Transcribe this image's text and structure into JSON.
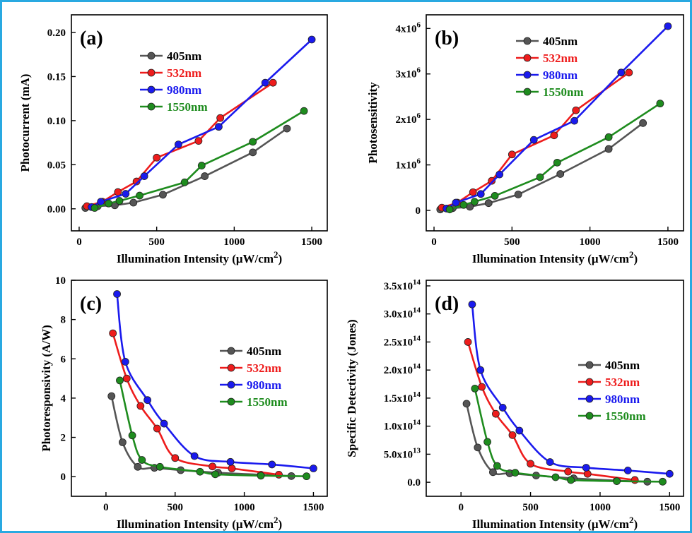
{
  "colors": {
    "frame": "#29a9e1",
    "405nm": "#555555",
    "532nm": "#ee1c1c",
    "980nm": "#1a1aee",
    "1550nm": "#1e8c1e"
  },
  "chart_data": [
    {
      "panel": "(a)",
      "type": "line",
      "xlabel": "Illumination Intensity (μW/cm²)",
      "ylabel": "Photocurrent (mA)",
      "xlim": [
        -50,
        1600
      ],
      "ylim": [
        -0.025,
        0.22
      ],
      "xticks": [
        0,
        500,
        1000,
        1500
      ],
      "xtick_labels": [
        "0",
        "500",
        "1000",
        "1500"
      ],
      "yticks": [
        0,
        0.05,
        0.1,
        0.15,
        0.2
      ],
      "ytick_labels": [
        "0.00",
        "0.05",
        "0.10",
        "0.15",
        "0.20"
      ],
      "legend": "top-left",
      "series": [
        {
          "name": "405nm",
          "color": "#555555",
          "x": [
            40,
            120,
            230,
            350,
            540,
            810,
            1120,
            1340
          ],
          "y": [
            0.001,
            0.003,
            0.004,
            0.007,
            0.016,
            0.037,
            0.064,
            0.091
          ]
        },
        {
          "name": "532nm",
          "color": "#ee1c1c",
          "x": [
            50,
            150,
            250,
            370,
            500,
            770,
            910,
            1250
          ],
          "y": [
            0.003,
            0.008,
            0.019,
            0.031,
            0.058,
            0.077,
            0.103,
            0.143
          ]
        },
        {
          "name": "980nm",
          "color": "#1a1aee",
          "x": [
            80,
            140,
            300,
            420,
            640,
            900,
            1200,
            1500
          ],
          "y": [
            0.002,
            0.008,
            0.017,
            0.037,
            0.073,
            0.093,
            0.143,
            0.192
          ]
        },
        {
          "name": "1550nm",
          "color": "#1e8c1e",
          "x": [
            100,
            190,
            260,
            390,
            680,
            790,
            1120,
            1450
          ],
          "y": [
            0.001,
            0.006,
            0.009,
            0.015,
            0.03,
            0.049,
            0.076,
            0.111
          ]
        }
      ]
    },
    {
      "panel": "(b)",
      "type": "line",
      "xlabel": "Illumination Intensity (μW/cm²)",
      "ylabel": "Photosensitivity",
      "xlim": [
        -50,
        1600
      ],
      "ylim": [
        -450000,
        4300000
      ],
      "xticks": [
        0,
        500,
        1000,
        1500
      ],
      "xtick_labels": [
        "0",
        "500",
        "1000",
        "1500"
      ],
      "yticks": [
        0,
        1000000,
        2000000,
        3000000,
        4000000
      ],
      "ytick_labels": [
        "0",
        "1x10⁶",
        "2x10⁶",
        "3x10⁶",
        "4x10⁶"
      ],
      "legend": "top-left",
      "series": [
        {
          "name": "405nm",
          "color": "#555555",
          "x": [
            40,
            120,
            230,
            350,
            540,
            810,
            1120,
            1340
          ],
          "y": [
            20000,
            50000,
            80000,
            160000,
            350000,
            800000,
            1350000,
            1920000
          ]
        },
        {
          "name": "532nm",
          "color": "#ee1c1c",
          "x": [
            50,
            150,
            250,
            370,
            500,
            770,
            910,
            1250
          ],
          "y": [
            60000,
            170000,
            400000,
            650000,
            1230000,
            1650000,
            2200000,
            3030000
          ]
        },
        {
          "name": "980nm",
          "color": "#1a1aee",
          "x": [
            80,
            140,
            300,
            420,
            640,
            900,
            1200,
            1500
          ],
          "y": [
            40000,
            170000,
            360000,
            790000,
            1550000,
            1970000,
            3030000,
            4050000
          ]
        },
        {
          "name": "1550nm",
          "color": "#1e8c1e",
          "x": [
            100,
            190,
            260,
            390,
            680,
            790,
            1120,
            1450
          ],
          "y": [
            20000,
            120000,
            190000,
            320000,
            730000,
            1050000,
            1610000,
            2350000
          ]
        }
      ]
    },
    {
      "panel": "(c)",
      "type": "line",
      "xlabel": "Illumination Intensity (μW/cm²)",
      "ylabel": "Photoresponsivity (A/W)",
      "xlim": [
        -250,
        1600
      ],
      "ylim": [
        -1,
        10
      ],
      "xticks": [
        0,
        500,
        1000,
        1500
      ],
      "xtick_labels": [
        "0",
        "500",
        "1000",
        "1500"
      ],
      "yticks": [
        0,
        2,
        4,
        6,
        8,
        10
      ],
      "ytick_labels": [
        "0",
        "2",
        "4",
        "6",
        "8",
        "10"
      ],
      "legend": "center-right",
      "series": [
        {
          "name": "405nm",
          "color": "#555555",
          "x": [
            40,
            120,
            230,
            350,
            540,
            810,
            1120,
            1340
          ],
          "y": [
            4.1,
            1.75,
            0.5,
            0.45,
            0.33,
            0.2,
            0.1,
            0.03
          ]
        },
        {
          "name": "532nm",
          "color": "#ee1c1c",
          "x": [
            50,
            150,
            250,
            370,
            500,
            770,
            910,
            1250
          ],
          "y": [
            7.3,
            5.0,
            3.6,
            2.45,
            0.95,
            0.52,
            0.42,
            0.1
          ]
        },
        {
          "name": "980nm",
          "color": "#1a1aee",
          "x": [
            80,
            140,
            300,
            420,
            640,
            900,
            1200,
            1500
          ],
          "y": [
            9.3,
            5.85,
            3.9,
            2.7,
            1.05,
            0.75,
            0.62,
            0.42
          ]
        },
        {
          "name": "1550nm",
          "color": "#1e8c1e",
          "x": [
            100,
            190,
            260,
            390,
            680,
            790,
            1120,
            1450
          ],
          "y": [
            4.9,
            2.1,
            0.85,
            0.5,
            0.25,
            0.12,
            0.05,
            0.02
          ]
        }
      ]
    },
    {
      "panel": "(d)",
      "type": "line",
      "xlabel": "Illumination Intensity (μW/cm²)",
      "ylabel": "Specific Detectivity (Jones)",
      "xlim": [
        -250,
        1600
      ],
      "ylim": [
        -25000000000000.0,
        360000000000000.0
      ],
      "xticks": [
        0,
        500,
        1000,
        1500
      ],
      "xtick_labels": [
        "0",
        "500",
        "1000",
        "1500"
      ],
      "yticks": [
        0,
        50000000000000.0,
        100000000000000.0,
        150000000000000.0,
        200000000000000.0,
        250000000000000.0,
        300000000000000.0,
        350000000000000.0
      ],
      "ytick_labels": [
        "0.0",
        "5.0x10¹³",
        "1.0x10¹⁴",
        "1.5x10¹⁴",
        "2.0x10¹⁴",
        "2.5x10¹⁴",
        "3.0x10¹⁴",
        "3.5x10¹⁴"
      ],
      "legend": "center-right",
      "series": [
        {
          "name": "405nm",
          "color": "#555555",
          "x": [
            40,
            120,
            230,
            350,
            540,
            810,
            1120,
            1340
          ],
          "y": [
            140000000000000.0,
            62000000000000.0,
            18000000000000.0,
            16000000000000.0,
            12000000000000.0,
            7000000000000.0,
            3000000000000.0,
            1000000000000.0
          ]
        },
        {
          "name": "532nm",
          "color": "#ee1c1c",
          "x": [
            50,
            150,
            250,
            370,
            500,
            770,
            910,
            1250
          ],
          "y": [
            250000000000000.0,
            170000000000000.0,
            122000000000000.0,
            84000000000000.0,
            33000000000000.0,
            19000000000000.0,
            15000000000000.0,
            4000000000000.0
          ]
        },
        {
          "name": "980nm",
          "color": "#1a1aee",
          "x": [
            80,
            140,
            300,
            420,
            640,
            900,
            1200,
            1500
          ],
          "y": [
            317000000000000.0,
            200000000000000.0,
            133000000000000.0,
            92000000000000.0,
            36000000000000.0,
            26000000000000.0,
            21000000000000.0,
            15000000000000.0
          ]
        },
        {
          "name": "1550nm",
          "color": "#1e8c1e",
          "x": [
            100,
            190,
            260,
            390,
            680,
            790,
            1120,
            1450
          ],
          "y": [
            167000000000000.0,
            72000000000000.0,
            29000000000000.0,
            17000000000000.0,
            9000000000000.0,
            4000000000000.0,
            2000000000000.0,
            1000000000000.0
          ]
        }
      ]
    }
  ]
}
